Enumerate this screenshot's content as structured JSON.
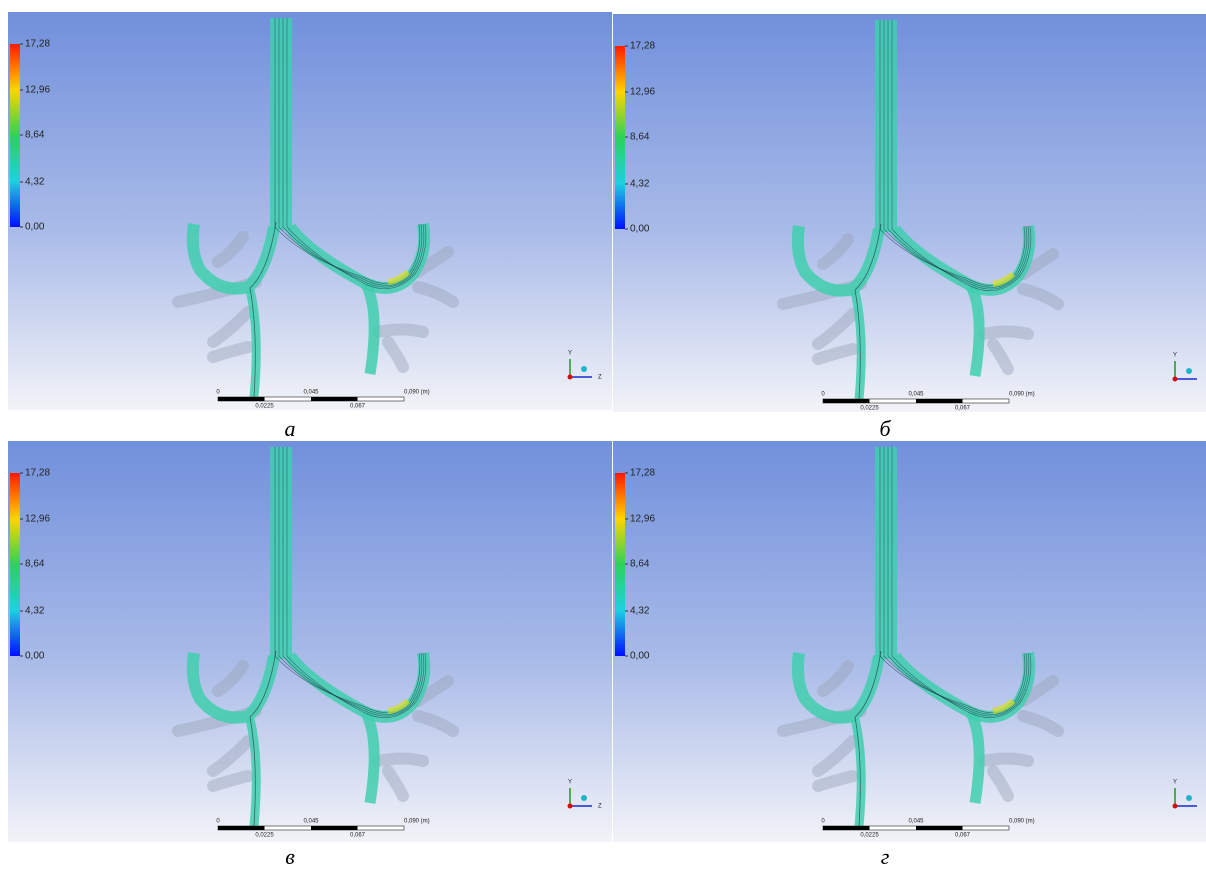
{
  "panels": [
    {
      "caption": "а",
      "colorbar": {
        "ticks": [
          "17,28",
          "12,96",
          "8,64",
          "4,32",
          "0,00"
        ]
      },
      "scale_bar": {
        "top": [
          "0",
          "0,045",
          "0,090  (m)"
        ],
        "bottom": [
          "0,0225",
          "0,067"
        ]
      },
      "axes": [
        "Y",
        "Z"
      ]
    },
    {
      "caption": "б",
      "colorbar": {
        "ticks": [
          "17,28",
          "12,96",
          "8,64",
          "4,32",
          "0,00"
        ]
      },
      "scale_bar": {
        "top": [
          "0",
          "0,045",
          "0,090  (m)"
        ],
        "bottom": [
          "0,0225",
          "0,067"
        ]
      },
      "axes": [
        "Y"
      ]
    },
    {
      "caption": "в",
      "colorbar": {
        "ticks": [
          "17,28",
          "12,96",
          "8,64",
          "4,32",
          "0,00"
        ]
      },
      "scale_bar": {
        "top": [
          "0",
          "0,045",
          "0,090  (m)"
        ],
        "bottom": [
          "0,0225",
          "0,067"
        ]
      },
      "axes": [
        "Y",
        "Z"
      ]
    },
    {
      "caption": "г",
      "colorbar": {
        "ticks": [
          "17,28",
          "12,96",
          "8,64",
          "4,32",
          "0,00"
        ]
      },
      "scale_bar": {
        "top": [
          "0",
          "0,045",
          "0,090  (m)"
        ],
        "bottom": [
          "0,0225",
          "0,067"
        ]
      },
      "axes": [
        "Y"
      ]
    }
  ]
}
